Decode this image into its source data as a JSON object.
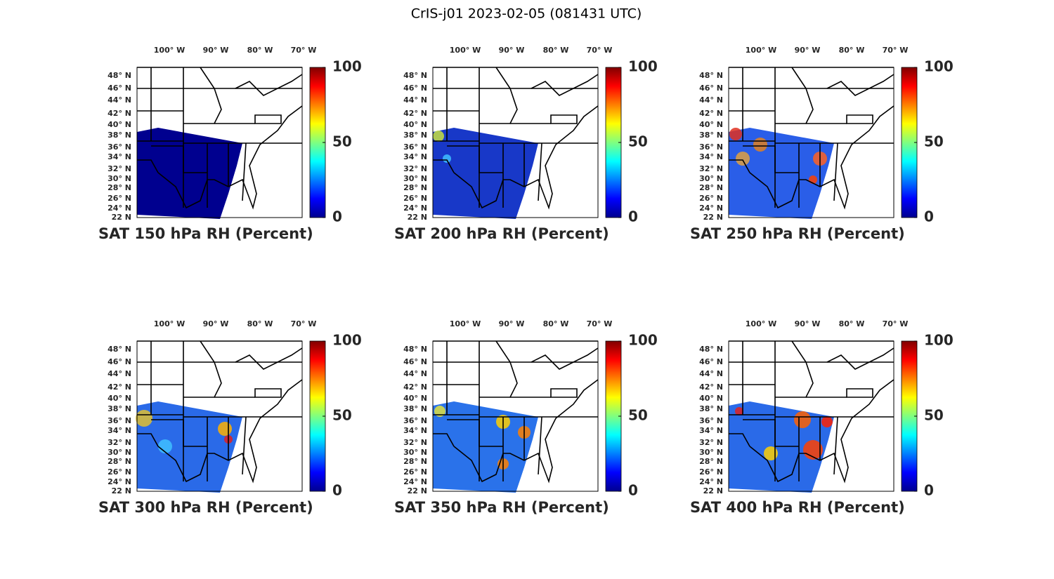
{
  "title": "CrIS-j01 2023-02-05 (081431 UTC)",
  "panels": [
    {
      "title": "SAT 150 hPa RH (Percent)"
    },
    {
      "title": "SAT 200 hPa RH (Percent)"
    },
    {
      "title": "SAT 250 hPa RH (Percent)"
    },
    {
      "title": "SAT 300 hPa RH (Percent)"
    },
    {
      "title": "SAT 350 hPa RH (Percent)"
    },
    {
      "title": "SAT 400 hPa RH (Percent)"
    }
  ],
  "lon_labels": [
    "100° W",
    "90° W",
    "80° W",
    "70° W"
  ],
  "lat_labels": [
    "48° N",
    "46° N",
    "44° N",
    "42° N",
    "40° N",
    "38° N",
    "36° N",
    "34° N",
    "32° N",
    "30° N",
    "28° N",
    "26° N",
    "24° N",
    "22 N"
  ],
  "colorbar": {
    "range": [
      0,
      100
    ],
    "ticks": [
      0,
      50,
      100
    ]
  }
}
